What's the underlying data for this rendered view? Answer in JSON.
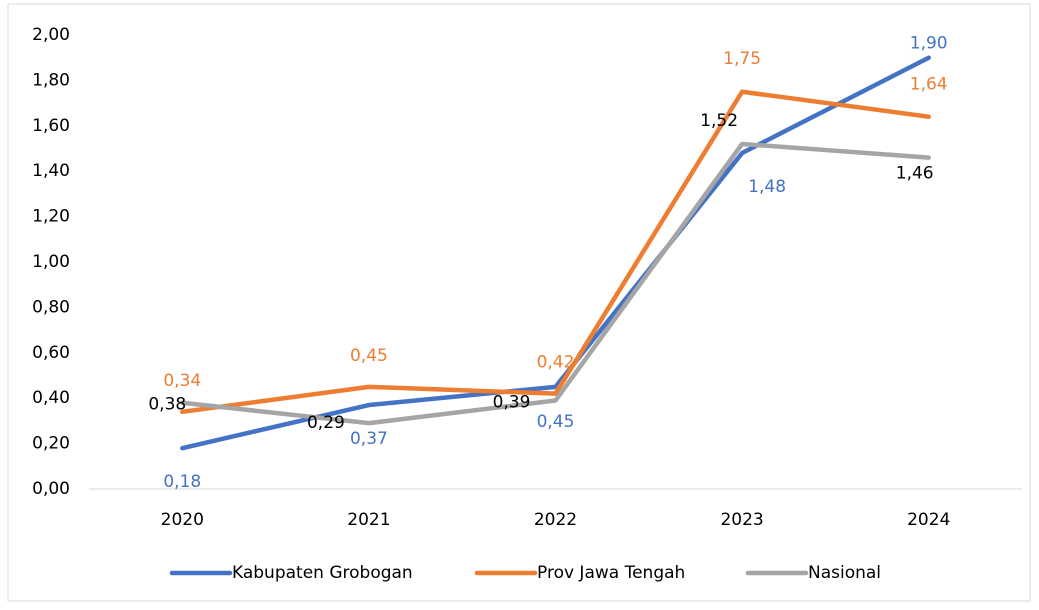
{
  "chart_data": {
    "type": "line",
    "categories": [
      "2020",
      "2021",
      "2022",
      "2023",
      "2024"
    ],
    "series": [
      {
        "name": "Kabupaten Grobogan",
        "color": "#4472c4",
        "label_color": "#4472c4",
        "values": [
          0.18,
          0.37,
          0.45,
          1.48,
          1.9
        ],
        "value_labels": [
          "0,18",
          "0,37",
          "0,45",
          "1,48",
          "1,90"
        ]
      },
      {
        "name": "Prov Jawa Tengah",
        "color": "#ed7d31",
        "label_color": "#ed7d31",
        "values": [
          0.34,
          0.45,
          0.42,
          1.75,
          1.64
        ],
        "value_labels": [
          "0,34",
          "0,45",
          "0,42",
          "1,75",
          "1,64"
        ]
      },
      {
        "name": "Nasional",
        "color": "#a5a5a5",
        "label_color": "#000000",
        "values": [
          0.38,
          0.29,
          0.39,
          1.52,
          1.46
        ],
        "value_labels": [
          "0,38",
          "0,29",
          "0,39",
          "1,52",
          "1,46"
        ]
      }
    ],
    "ylim": [
      0,
      2
    ],
    "yticks": [
      {
        "value": 0,
        "label": "0,00"
      },
      {
        "value": 0.2,
        "label": "0,20"
      },
      {
        "value": 0.4,
        "label": "0,40"
      },
      {
        "value": 0.6,
        "label": "0,60"
      },
      {
        "value": 0.8,
        "label": "0,80"
      },
      {
        "value": 1.0,
        "label": "1,00"
      },
      {
        "value": 1.2,
        "label": "1,20"
      },
      {
        "value": 1.4,
        "label": "1,40"
      },
      {
        "value": 1.6,
        "label": "1,60"
      },
      {
        "value": 1.8,
        "label": "1,80"
      },
      {
        "value": 2.0,
        "label": "2,00"
      }
    ],
    "grid": false,
    "legend": "bottom"
  }
}
